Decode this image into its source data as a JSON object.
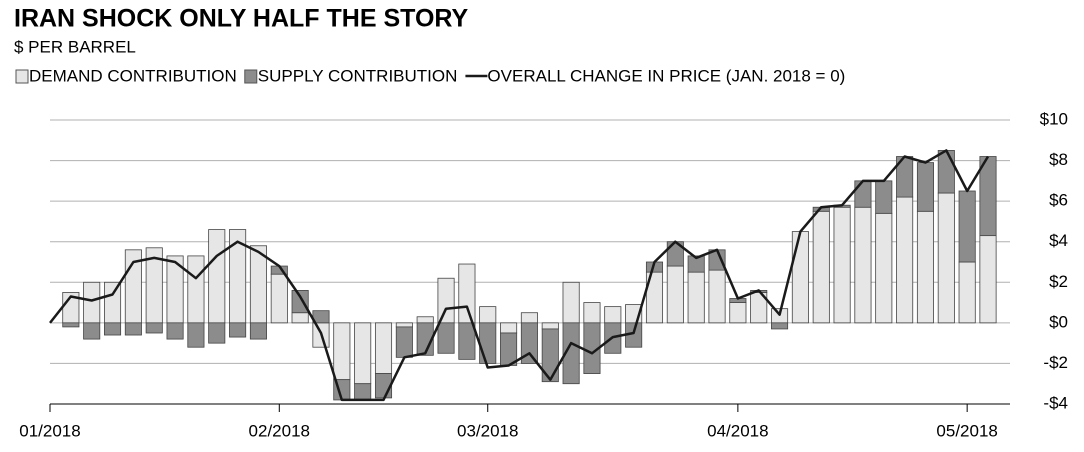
{
  "chart_data": {
    "type": "bar",
    "stacked": true,
    "title": "IRAN SHOCK ONLY HALF THE STORY",
    "subtitle": "$ PER BARREL",
    "categories": [
      "01/2018",
      null,
      null,
      null,
      null,
      null,
      null,
      null,
      null,
      null,
      null,
      "02/2018",
      null,
      null,
      null,
      null,
      null,
      null,
      null,
      null,
      null,
      "03/2018",
      null,
      null,
      null,
      null,
      null,
      null,
      null,
      null,
      null,
      null,
      null,
      "04/2018",
      null,
      null,
      null,
      null,
      null,
      null,
      null,
      null,
      null,
      null,
      "05/2018",
      null
    ],
    "series": [
      {
        "name": "DEMAND CONTRIBUTION",
        "color": "#e6e6e6",
        "values": [
          0,
          1.5,
          2.0,
          2.0,
          3.6,
          3.7,
          3.3,
          3.3,
          4.6,
          4.6,
          3.8,
          2.4,
          0.5,
          -1.2,
          -2.8,
          -3.0,
          -2.5,
          -0.2,
          0.3,
          2.2,
          2.9,
          0.8,
          -0.5,
          0.5,
          -0.3,
          2.0,
          1.0,
          0.8,
          0.9,
          2.5,
          2.8,
          2.5,
          2.6,
          1.0,
          1.5,
          0.7,
          4.5,
          5.5,
          5.7,
          5.7,
          5.4,
          6.2,
          5.5,
          6.4,
          3.0,
          4.3
        ]
      },
      {
        "name": "SUPPLY CONTRIBUTION",
        "color": "#8c8c8c",
        "values": [
          0,
          -0.2,
          -0.8,
          -0.6,
          -0.6,
          -0.5,
          -0.8,
          -1.2,
          -1.0,
          -0.7,
          -0.8,
          0.4,
          1.1,
          0.6,
          -1.0,
          -0.8,
          -1.2,
          -1.5,
          -1.6,
          -1.5,
          -1.8,
          -2.0,
          -1.6,
          -2.0,
          -2.6,
          -3.0,
          -2.5,
          -1.5,
          -1.2,
          0.5,
          1.2,
          0.8,
          1.0,
          0.2,
          0.1,
          -0.3,
          0,
          0.2,
          0.1,
          1.3,
          1.6,
          2.0,
          2.4,
          2.1,
          3.5,
          3.9
        ]
      },
      {
        "name": "OVERALL CHANGE IN PRICE (JAN. 2018 = 0)",
        "color": "#1a1a1a",
        "type": "line",
        "values": [
          0,
          1.3,
          1.1,
          1.4,
          3.0,
          3.2,
          3.0,
          2.2,
          3.3,
          4.0,
          3.5,
          2.8,
          1.3,
          -0.5,
          -3.8,
          -3.8,
          -3.8,
          -1.7,
          -1.5,
          0.7,
          0.8,
          -2.2,
          -2.1,
          -1.5,
          -2.8,
          -1.0,
          -1.5,
          -0.7,
          -0.5,
          3.0,
          4.0,
          3.2,
          3.6,
          1.2,
          1.6,
          0.4,
          4.5,
          5.7,
          5.8,
          7.0,
          7.0,
          8.2,
          7.9,
          8.5,
          6.5,
          8.2
        ]
      }
    ],
    "ylim": [
      -4,
      10
    ],
    "yticks": [
      {
        "value": -4,
        "label": "-$4"
      },
      {
        "value": -2,
        "label": "-$2"
      },
      {
        "value": 0,
        "label": "$0"
      },
      {
        "value": 2,
        "label": "$2"
      },
      {
        "value": 4,
        "label": "$4"
      },
      {
        "value": 6,
        "label": "$6"
      },
      {
        "value": 8,
        "label": "$8"
      },
      {
        "value": 10,
        "label": "$10"
      }
    ],
    "grid": true,
    "legend": "top"
  }
}
